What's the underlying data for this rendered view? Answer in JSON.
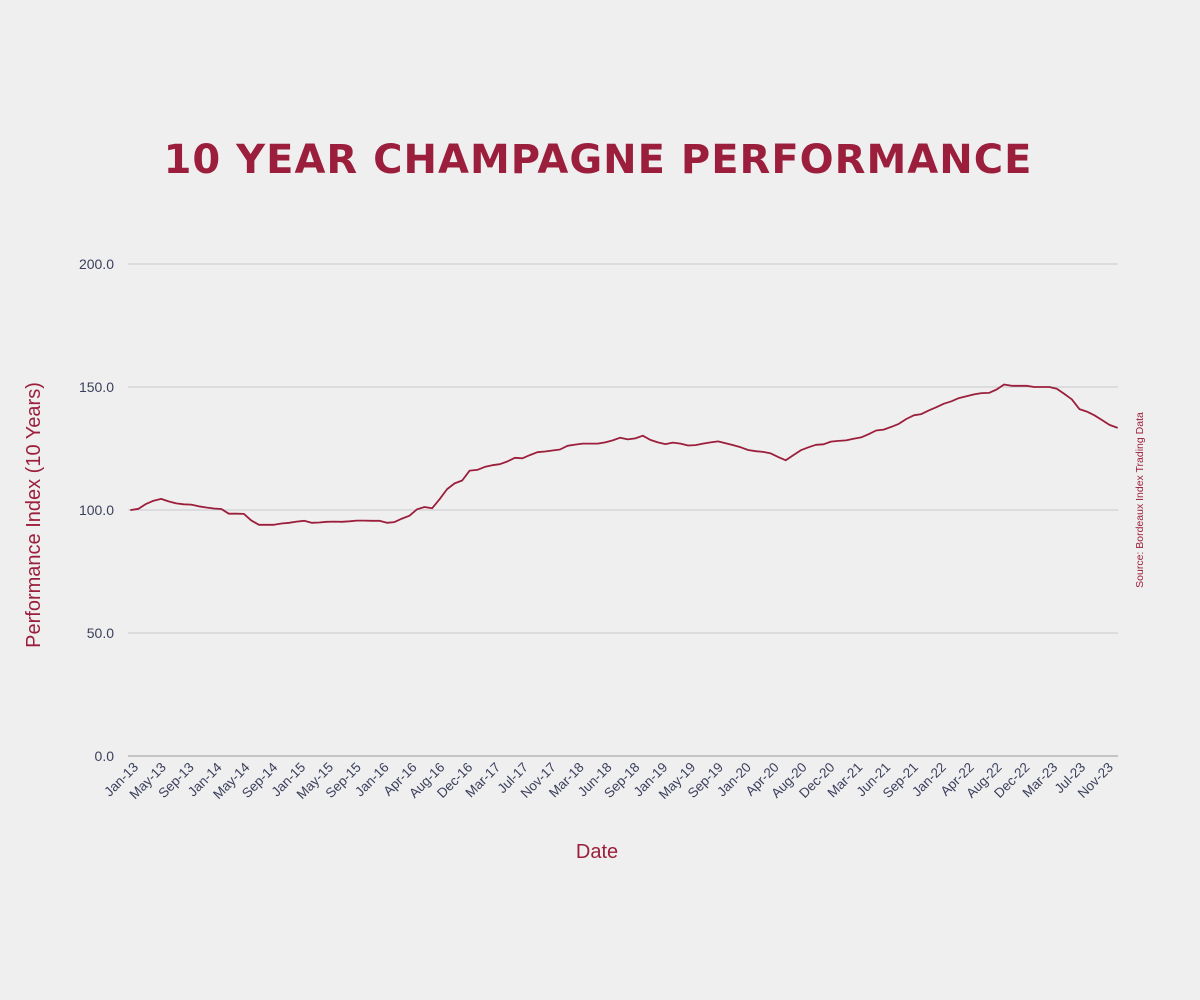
{
  "chart_data": {
    "type": "line",
    "title": "10 YEAR CHAMPAGNE PERFORMANCE",
    "xlabel": "Date",
    "ylabel": "Performance Index (10 Years)",
    "source": "Source: Bordeaux Index Trading Data",
    "ylim": [
      0,
      200
    ],
    "yticks": [
      "0.0",
      "50.0",
      "100.0",
      "150.0",
      "200.0"
    ],
    "ytick_values": [
      0,
      50,
      100,
      150,
      200
    ],
    "grid": true,
    "line_color": "#9b1f3c",
    "xtick_labels": [
      "Jan-13",
      "May-13",
      "Sep-13",
      "Jan-14",
      "May-14",
      "Sep-14",
      "Jan-15",
      "May-15",
      "Sep-15",
      "Jan-16",
      "Apr-16",
      "Aug-16",
      "Dec-16",
      "Mar-17",
      "Jul-17",
      "Nov-17",
      "Mar-18",
      "Jun-18",
      "Sep-18",
      "Jan-19",
      "May-19",
      "Sep-19",
      "Jan-20",
      "Apr-20",
      "Aug-20",
      "Dec-20",
      "Mar-21",
      "Jun-21",
      "Sep-21",
      "Jan-22",
      "Apr-22",
      "Aug-22",
      "Dec-22",
      "Mar-23",
      "Jul-23",
      "Nov-23"
    ],
    "series": [
      {
        "values": [
          100.0,
          100.5,
          102.5,
          103.8,
          104.5,
          103.5,
          102.7,
          102.3,
          102.2,
          101.5,
          101.0,
          100.6,
          100.4,
          98.5,
          98.5,
          98.4,
          95.7,
          94.0,
          94.0,
          94.0,
          94.5,
          94.8,
          95.3,
          95.6,
          94.8,
          94.9,
          95.2,
          95.3,
          95.2,
          95.4,
          95.7,
          95.7,
          95.6,
          95.6,
          94.8,
          95.1,
          96.5,
          97.7,
          100.3,
          101.2,
          100.7,
          104.4,
          108.5,
          110.8,
          112.0,
          116.0,
          116.3,
          117.5,
          118.2,
          118.6,
          119.7,
          121.2,
          121.0,
          122.3,
          123.5,
          123.8,
          124.2,
          124.6,
          126.1,
          126.6,
          127.0,
          127.0,
          127.0,
          127.5,
          128.3,
          129.4,
          128.7,
          129.1,
          130.2,
          128.5,
          127.5,
          126.8,
          127.4,
          127.0,
          126.2,
          126.4,
          127.0,
          127.5,
          127.9,
          127.1,
          126.4,
          125.5,
          124.4,
          123.9,
          123.6,
          123.0,
          121.5,
          120.2,
          122.3,
          124.3,
          125.5,
          126.5,
          126.7,
          127.8,
          128.1,
          128.3,
          129.0,
          129.5,
          130.8,
          132.3,
          132.7,
          133.8,
          135.0,
          137.0,
          138.5,
          139.0,
          140.5,
          141.8,
          143.2,
          144.2,
          145.5,
          146.2,
          147.0,
          147.5,
          147.6,
          149.0,
          151.0,
          150.5,
          150.5,
          150.5,
          150.0,
          150.0,
          150.0,
          149.3,
          147.2,
          145.0,
          141.0,
          140.0,
          138.5,
          136.6,
          134.6,
          133.5
        ]
      }
    ]
  }
}
